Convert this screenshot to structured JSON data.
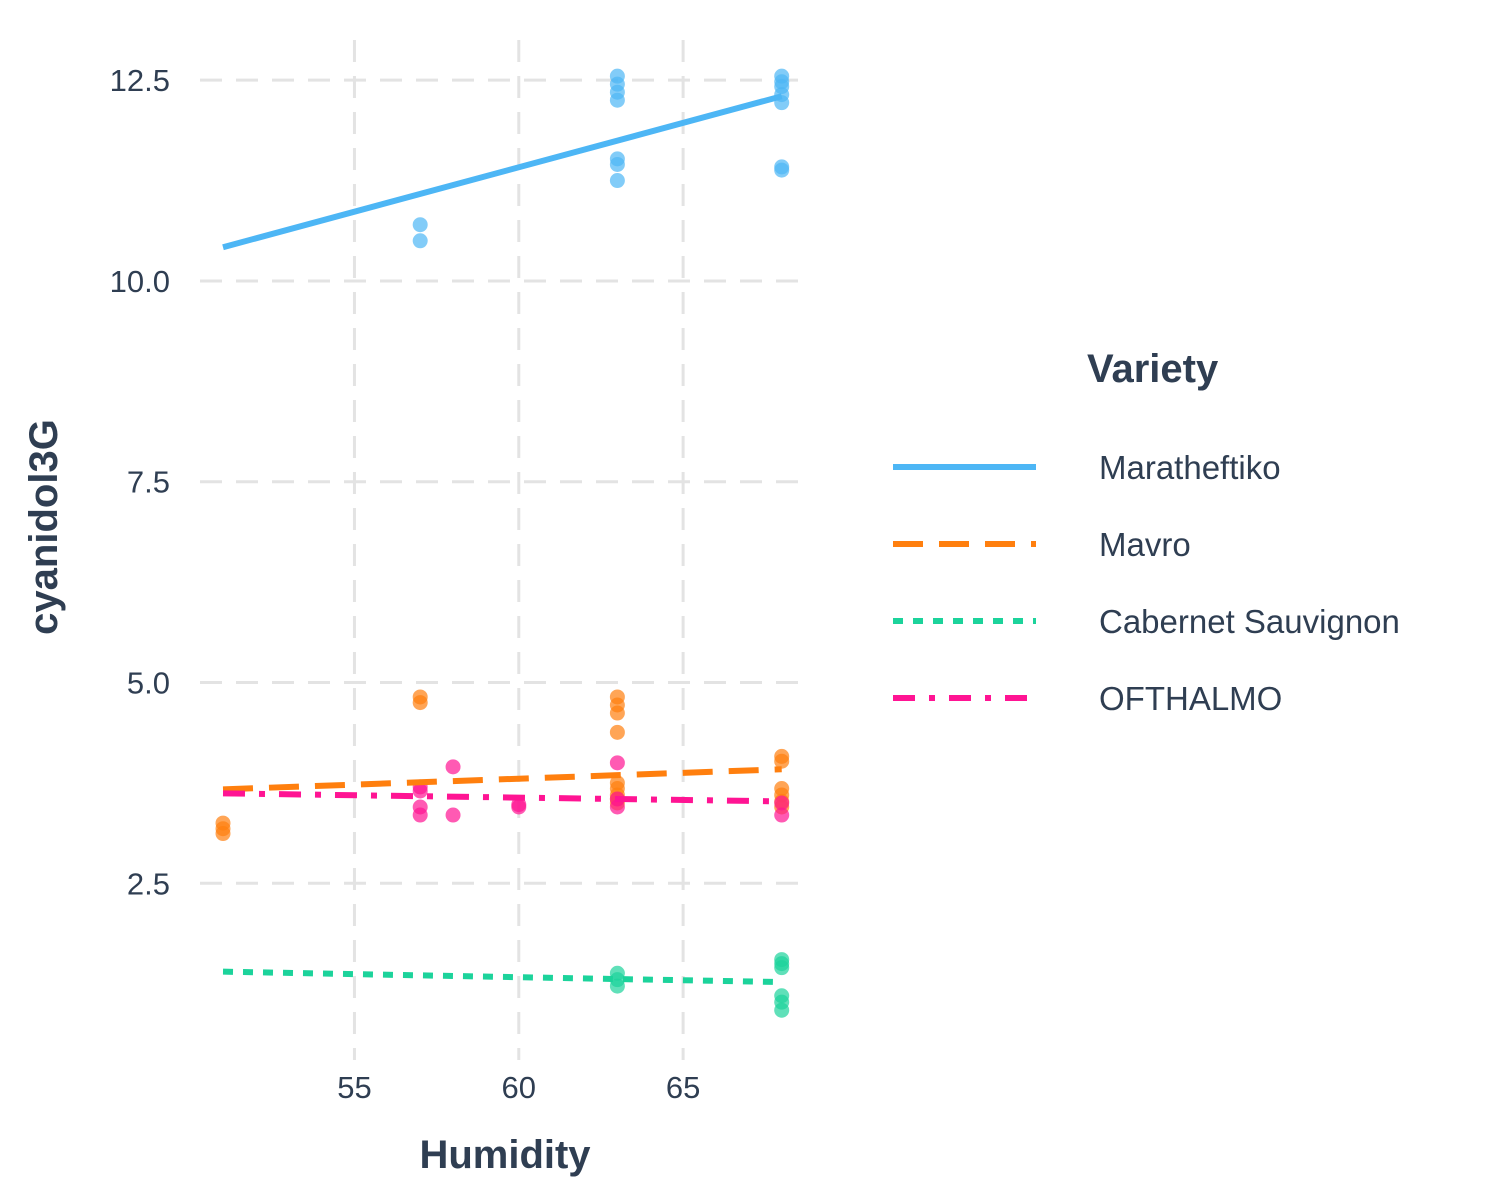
{
  "chart_data": {
    "type": "scatter",
    "xlabel": "Humidity",
    "ylabel": "cyanidol3G",
    "xlim": [
      50.3,
      68.8
    ],
    "ylim": [
      0.3,
      13.0
    ],
    "x_ticks": [
      55,
      60,
      65
    ],
    "y_ticks": [
      2.5,
      5.0,
      7.5,
      10.0,
      12.5
    ],
    "y_tick_labels": [
      "2.5",
      "5.0",
      "7.5",
      "10.0",
      "12.5"
    ],
    "grid": true,
    "grid_style": "dashed",
    "legend": {
      "title": "Variety",
      "position": "right"
    },
    "series": [
      {
        "name": "Maratheftiko",
        "color": "#4db6f5",
        "line_style": "solid",
        "fit": {
          "x": [
            51,
            68
          ],
          "y": [
            10.42,
            12.3
          ]
        },
        "points": [
          [
            57,
            10.7
          ],
          [
            57,
            10.5
          ],
          [
            63,
            12.55
          ],
          [
            63,
            12.45
          ],
          [
            63,
            12.35
          ],
          [
            63,
            12.25
          ],
          [
            63,
            11.52
          ],
          [
            63,
            11.45
          ],
          [
            63,
            11.25
          ],
          [
            68,
            12.55
          ],
          [
            68,
            12.48
          ],
          [
            68,
            12.42
          ],
          [
            68,
            12.32
          ],
          [
            68,
            12.22
          ],
          [
            68,
            11.42
          ],
          [
            68,
            11.38
          ]
        ]
      },
      {
        "name": "Mavro",
        "color": "#ff7f0e",
        "line_style": "dashed",
        "fit": {
          "x": [
            51,
            68
          ],
          "y": [
            3.67,
            3.92
          ]
        },
        "points": [
          [
            51,
            3.25
          ],
          [
            51,
            3.18
          ],
          [
            51,
            3.12
          ],
          [
            57,
            4.82
          ],
          [
            57,
            4.75
          ],
          [
            63,
            4.82
          ],
          [
            63,
            4.72
          ],
          [
            63,
            4.62
          ],
          [
            63,
            4.38
          ],
          [
            63,
            3.75
          ],
          [
            63,
            3.68
          ],
          [
            63,
            3.6
          ],
          [
            63,
            3.55
          ],
          [
            63,
            3.5
          ],
          [
            68,
            4.08
          ],
          [
            68,
            4.02
          ],
          [
            68,
            3.68
          ],
          [
            68,
            3.6
          ],
          [
            68,
            3.52
          ],
          [
            68,
            3.45
          ]
        ]
      },
      {
        "name": "Cabernet Sauvignon",
        "color": "#1cd39b",
        "line_style": "dotted",
        "fit": {
          "x": [
            51,
            68
          ],
          "y": [
            1.4,
            1.27
          ]
        },
        "points": [
          [
            63,
            1.38
          ],
          [
            63,
            1.3
          ],
          [
            63,
            1.22
          ],
          [
            68,
            1.55
          ],
          [
            68,
            1.5
          ],
          [
            68,
            1.45
          ],
          [
            68,
            1.1
          ],
          [
            68,
            1.02
          ],
          [
            68,
            0.92
          ]
        ]
      },
      {
        "name": "OFTHALMO",
        "color": "#ff1493",
        "line_style": "dotdash",
        "fit": {
          "x": [
            51,
            68
          ],
          "y": [
            3.62,
            3.52
          ]
        },
        "points": [
          [
            57,
            3.7
          ],
          [
            57,
            3.65
          ],
          [
            57,
            3.45
          ],
          [
            57,
            3.35
          ],
          [
            58,
            3.95
          ],
          [
            58,
            3.35
          ],
          [
            60,
            3.48
          ],
          [
            60,
            3.45
          ],
          [
            63,
            4.0
          ],
          [
            63,
            3.55
          ],
          [
            63,
            3.45
          ],
          [
            68,
            3.5
          ],
          [
            68,
            3.35
          ]
        ]
      }
    ]
  }
}
